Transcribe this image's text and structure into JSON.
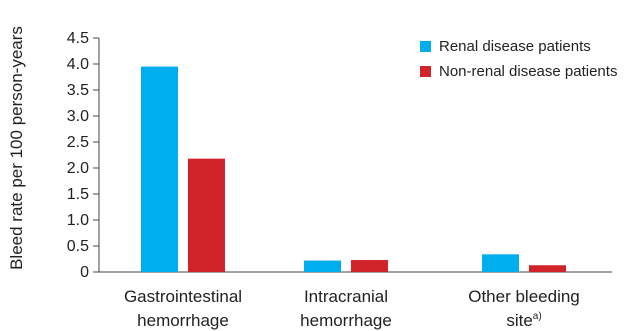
{
  "chart_data": {
    "type": "bar",
    "ylabel": "Bleed rate per 100 person-years",
    "xlabel": "",
    "ylim": [
      0,
      4.5
    ],
    "yticks": [
      "0",
      "0.5",
      "1.0",
      "1.5",
      "2.0",
      "2.5",
      "3.0",
      "3.5",
      "4.0",
      "4.5"
    ],
    "grid": false,
    "legend_position": "top-right",
    "categories": [
      {
        "lines": [
          "Gastrointestinal",
          "hemorrhage"
        ],
        "superscript": ""
      },
      {
        "lines": [
          "Intracranial",
          "hemorrhage"
        ],
        "superscript": ""
      },
      {
        "lines": [
          "Other bleeding",
          "site"
        ],
        "superscript": "a)"
      }
    ],
    "series": [
      {
        "name": "Renal disease patients",
        "color": "#00ADEF",
        "values": [
          3.95,
          0.22,
          0.34
        ]
      },
      {
        "name": "Non-renal disease patients",
        "color": "#D1232A",
        "values": [
          2.18,
          0.23,
          0.13
        ]
      }
    ]
  }
}
